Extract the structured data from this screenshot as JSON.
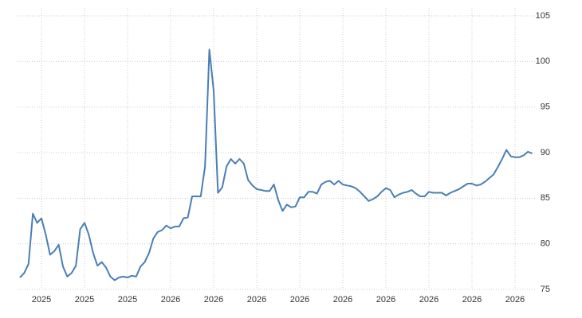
{
  "chart_data": {
    "type": "line",
    "color": "#4a7fb5",
    "grid": true,
    "y_axis_side": "right",
    "ylim": [
      75,
      105
    ],
    "yticks": [
      75,
      80,
      85,
      90,
      95,
      100,
      105
    ],
    "categories": [
      null,
      null,
      null,
      null,
      null,
      "2025",
      null,
      null,
      null,
      null,
      null,
      null,
      null,
      null,
      null,
      "2025",
      null,
      null,
      null,
      null,
      null,
      null,
      null,
      null,
      null,
      "2025",
      null,
      null,
      null,
      null,
      null,
      null,
      null,
      null,
      null,
      "2026",
      null,
      null,
      null,
      null,
      null,
      null,
      null,
      null,
      null,
      "2026",
      null,
      null,
      null,
      null,
      null,
      null,
      null,
      null,
      null,
      "2026",
      null,
      null,
      null,
      null,
      null,
      null,
      null,
      null,
      null,
      "2026",
      null,
      null,
      null,
      null,
      null,
      null,
      null,
      null,
      null,
      "2026",
      null,
      null,
      null,
      null,
      null,
      null,
      null,
      null,
      null,
      "2026",
      null,
      null,
      null,
      null,
      null,
      null,
      null,
      null,
      null,
      "2026",
      null,
      null,
      null,
      null,
      null,
      null,
      null,
      null,
      null,
      "2026",
      null,
      null,
      null,
      null,
      null,
      null,
      null,
      null,
      null,
      "2026",
      null,
      null,
      null,
      null
    ],
    "values": [
      76.3,
      76.8,
      77.8,
      83.3,
      82.3,
      82.8,
      81.0,
      78.8,
      79.2,
      79.9,
      77.5,
      76.4,
      76.8,
      77.6,
      81.6,
      82.3,
      81.0,
      79.0,
      77.6,
      78.0,
      77.4,
      76.4,
      76.0,
      76.3,
      76.4,
      76.3,
      76.5,
      76.4,
      77.5,
      78.0,
      79.0,
      80.6,
      81.3,
      81.5,
      82.0,
      81.7,
      81.9,
      81.9,
      82.8,
      82.9,
      85.2,
      85.2,
      85.2,
      88.5,
      101.3,
      96.8,
      85.6,
      86.2,
      88.5,
      89.3,
      88.8,
      89.3,
      88.8,
      87.0,
      86.4,
      86.0,
      85.9,
      85.8,
      85.8,
      86.5,
      84.8,
      83.6,
      84.3,
      84.0,
      84.1,
      85.1,
      85.1,
      85.7,
      85.7,
      85.5,
      86.5,
      86.8,
      86.9,
      86.5,
      86.9,
      86.5,
      86.4,
      86.3,
      86.1,
      85.7,
      85.2,
      84.7,
      84.9,
      85.2,
      85.7,
      86.1,
      85.9,
      85.1,
      85.4,
      85.6,
      85.7,
      85.9,
      85.5,
      85.2,
      85.2,
      85.7,
      85.6,
      85.6,
      85.6,
      85.3,
      85.6,
      85.8,
      86.0,
      86.3,
      86.6,
      86.6,
      86.4,
      86.5,
      86.8,
      87.2,
      87.6,
      88.4,
      89.3,
      90.3,
      89.6,
      89.5,
      89.5,
      89.7,
      90.1,
      89.9
    ]
  }
}
